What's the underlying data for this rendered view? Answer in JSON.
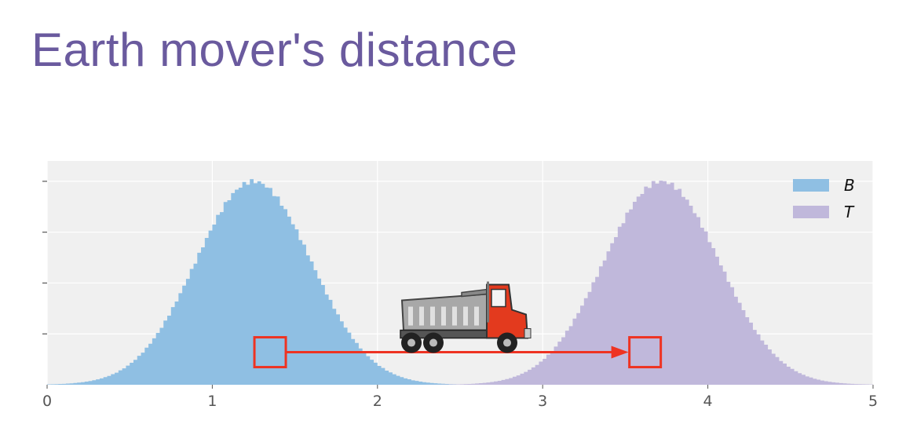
{
  "slide": {
    "title": "Earth mover's distance",
    "title_color": "#6a5a9e"
  },
  "chart_data": {
    "type": "area",
    "title": "",
    "xlabel": "",
    "ylabel": "",
    "xlim": [
      0,
      5
    ],
    "ylim": [
      0,
      1.1
    ],
    "x_ticks": [
      "0",
      "1",
      "2",
      "3",
      "4",
      "5"
    ],
    "y_ticks_labeled": false,
    "grid": true,
    "background": "#f0f0f0",
    "grid_color": "#ffffff",
    "tick_color": "#555555",
    "legend_position": "top-right",
    "series": [
      {
        "name": "B",
        "distribution": "normal",
        "mean": 1.25,
        "std": 0.35,
        "peak": 1.0,
        "color": "#8fbfe3"
      },
      {
        "name": "T",
        "distribution": "normal",
        "mean": 3.72,
        "std": 0.35,
        "peak": 1.0,
        "color": "#c0b8db"
      }
    ],
    "annotations": {
      "source_box": {
        "x": 1.35,
        "y": 0.16
      },
      "target_box": {
        "x": 3.62,
        "y": 0.16
      },
      "arrow": {
        "from": 1.45,
        "to": 3.52,
        "y": 0.16,
        "color": "#ee3322"
      },
      "truck": {
        "x": 2.5,
        "y": 0.38,
        "icon": "dump-truck-icon"
      }
    }
  }
}
